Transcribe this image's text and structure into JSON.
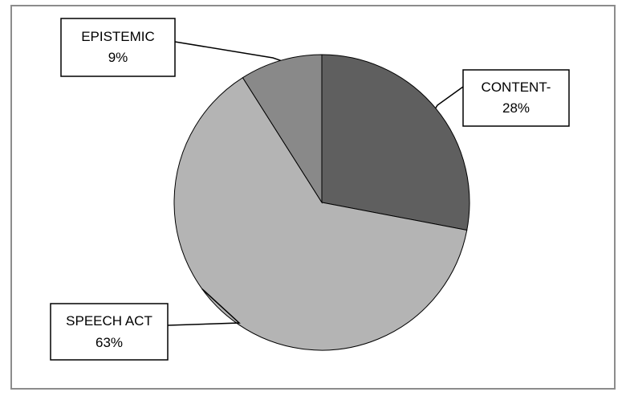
{
  "chart_data": {
    "type": "pie",
    "title": "",
    "start_angle_deg": 0,
    "direction": "clockwise",
    "slices": [
      {
        "name": "CONTENT-",
        "value_label": "28%",
        "value": 28,
        "color": "#5f5f5f"
      },
      {
        "name": "SPEECH ACT",
        "value_label": "63%",
        "value": 63,
        "color": "#b4b4b4"
      },
      {
        "name": "EPISTEMIC",
        "value_label": "9%",
        "value": 9,
        "color": "#898989"
      }
    ],
    "legend": "none",
    "labels": "callouts with leader lines"
  }
}
